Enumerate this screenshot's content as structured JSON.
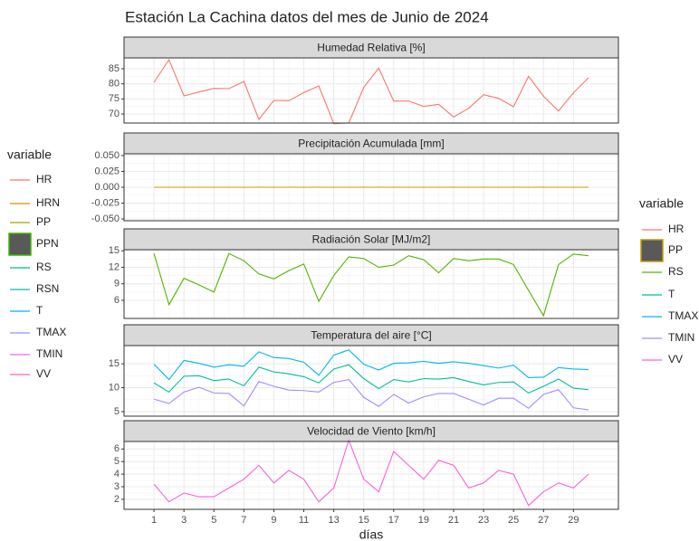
{
  "title": "Estación La Cachina datos del mes de Junio de 2024",
  "legends": [
    {
      "title": "variable",
      "entries": [
        {
          "name": "HR",
          "color": "#F8766D",
          "key": "line"
        },
        {
          "name": "HRN",
          "color": "#D89000",
          "key": "line"
        },
        {
          "name": "PP",
          "color": "#A3A500",
          "key": "line"
        },
        {
          "name": "PPN",
          "color": "#39B600",
          "key": "box"
        },
        {
          "name": "RS",
          "color": "#00BF7D",
          "key": "line"
        },
        {
          "name": "RSN",
          "color": "#00BFAD",
          "key": "line"
        },
        {
          "name": "T",
          "color": "#00B0F6",
          "key": "line"
        },
        {
          "name": "TMAX",
          "color": "#9590FF",
          "key": "line"
        },
        {
          "name": "TMIN",
          "color": "#E76BF3",
          "key": "line"
        },
        {
          "name": "VV",
          "color": "#FF62BC",
          "key": "line"
        }
      ]
    },
    {
      "title": "variable",
      "entries": [
        {
          "name": "HR",
          "color": "#F8766D",
          "key": "line"
        },
        {
          "name": "PP",
          "color": "#C49A00",
          "key": "box"
        },
        {
          "name": "RS",
          "color": "#53B400",
          "key": "line"
        },
        {
          "name": "T",
          "color": "#00C094",
          "key": "line"
        },
        {
          "name": "TMAX",
          "color": "#00B6EB",
          "key": "line"
        },
        {
          "name": "TMIN",
          "color": "#A58AFF",
          "key": "line"
        },
        {
          "name": "VV",
          "color": "#FB61D7",
          "key": "line"
        }
      ]
    }
  ],
  "chart_data": [
    {
      "type": "line",
      "title": "Humedad Relativa [%]",
      "x": [
        1,
        2,
        3,
        4,
        5,
        6,
        7,
        8,
        9,
        10,
        11,
        12,
        13,
        14,
        15,
        16,
        17,
        18,
        19,
        20,
        21,
        22,
        23,
        24,
        25,
        26,
        27,
        28,
        29,
        30
      ],
      "xlim": [
        -1,
        32
      ],
      "xticks": [
        1,
        3,
        5,
        7,
        9,
        11,
        13,
        15,
        17,
        19,
        21,
        23,
        25,
        27,
        29
      ],
      "ylim": [
        67,
        88.6
      ],
      "yticks": [
        70,
        75,
        80,
        85
      ],
      "grid": true,
      "series": [
        {
          "name": "HR",
          "color": "#F8766D",
          "values": [
            80.5,
            88,
            76,
            77.3,
            78.5,
            78.4,
            80.8,
            68.2,
            74.5,
            74.4,
            77.1,
            79.3,
            66.8,
            67,
            78.8,
            85.2,
            74.3,
            74.3,
            72.5,
            73.2,
            69,
            71.9,
            76.4,
            75.2,
            72.4,
            82.5,
            75.9,
            71,
            77,
            82
          ]
        }
      ]
    },
    {
      "type": "line",
      "title": "Precipitación Acumulada [mm]",
      "x": [
        1,
        2,
        3,
        4,
        5,
        6,
        7,
        8,
        9,
        10,
        11,
        12,
        13,
        14,
        15,
        16,
        17,
        18,
        19,
        20,
        21,
        22,
        23,
        24,
        25,
        26,
        27,
        28,
        29,
        30
      ],
      "xlim": [
        -1,
        32
      ],
      "xticks": [
        1,
        3,
        5,
        7,
        9,
        11,
        13,
        15,
        17,
        19,
        21,
        23,
        25,
        27,
        29
      ],
      "ylim": [
        -0.0528,
        0.0528
      ],
      "yticks": [
        {
          "value": -0.05,
          "label": "-0.050"
        },
        {
          "value": -0.025,
          "label": "-0.025"
        },
        {
          "value": 0,
          "label": "0.000"
        },
        {
          "value": 0.025,
          "label": "0.025"
        },
        {
          "value": 0.05,
          "label": "0.050"
        }
      ],
      "grid": true,
      "series": [
        {
          "name": "PP",
          "color": "#C49A00",
          "values": [
            0,
            0,
            0,
            0,
            0,
            0,
            0,
            0,
            0,
            0,
            0,
            0,
            0,
            0,
            0,
            0,
            0,
            0,
            0,
            0,
            0,
            0,
            0,
            0,
            0,
            0,
            0,
            0,
            0,
            0
          ]
        }
      ]
    },
    {
      "type": "line",
      "title": "Radiación Solar [MJ/m2]",
      "x": [
        1,
        2,
        3,
        4,
        5,
        6,
        7,
        8,
        9,
        10,
        11,
        12,
        13,
        14,
        15,
        16,
        17,
        18,
        19,
        20,
        21,
        22,
        23,
        24,
        25,
        26,
        27,
        28,
        29,
        30
      ],
      "xlim": [
        -1,
        32
      ],
      "xticks": [
        1,
        3,
        5,
        7,
        9,
        11,
        13,
        15,
        17,
        19,
        21,
        23,
        25,
        27,
        29
      ],
      "ylim": [
        2.7,
        15.2
      ],
      "yticks": [
        6,
        9,
        12,
        15
      ],
      "grid": true,
      "series": [
        {
          "name": "RS",
          "color": "#53B400",
          "values": [
            14.5,
            5.2,
            10,
            8.8,
            7.5,
            14.5,
            13.2,
            10.8,
            9.9,
            11.4,
            12.6,
            5.8,
            10.5,
            13.9,
            13.6,
            12,
            12.4,
            14.1,
            13.4,
            11,
            13.6,
            13.2,
            13.5,
            13.5,
            12.5,
            7.8,
            3.2,
            12.5,
            14.4,
            14.1
          ]
        }
      ]
    },
    {
      "type": "line",
      "title": "Temperatura del aire [°C]",
      "x": [
        1,
        2,
        3,
        4,
        5,
        6,
        7,
        8,
        9,
        10,
        11,
        12,
        13,
        14,
        15,
        16,
        17,
        18,
        19,
        20,
        21,
        22,
        23,
        24,
        25,
        26,
        27,
        28,
        29,
        30
      ],
      "xlim": [
        -1,
        32
      ],
      "xticks": [
        1,
        3,
        5,
        7,
        9,
        11,
        13,
        15,
        17,
        19,
        21,
        23,
        25,
        27,
        29
      ],
      "ylim": [
        4.06,
        18.8
      ],
      "yticks": [
        5,
        10,
        15
      ],
      "grid": true,
      "series": [
        {
          "name": "T",
          "color": "#00C094",
          "values": [
            11,
            9.1,
            12.4,
            12.5,
            11.5,
            11.8,
            10.4,
            14.3,
            13.3,
            12.9,
            12.3,
            11,
            13.9,
            14.8,
            11.9,
            9.8,
            11.7,
            11.2,
            11.9,
            11.8,
            12.1,
            11.3,
            10.6,
            11.1,
            11.2,
            8.9,
            10.3,
            11.8,
            9.9,
            9.6
          ]
        },
        {
          "name": "TMAX",
          "color": "#00B6EB",
          "values": [
            14.9,
            11.7,
            15.7,
            15.1,
            14.3,
            14.8,
            14.5,
            17.5,
            16.3,
            16.1,
            15.3,
            12.6,
            16.8,
            17.9,
            14.9,
            13.7,
            15.1,
            15.2,
            15.5,
            15.1,
            15.4,
            15.1,
            14.6,
            14.1,
            14.7,
            12.1,
            12.2,
            14.2,
            13.9,
            13.8
          ]
        },
        {
          "name": "TMIN",
          "color": "#A58AFF",
          "values": [
            7.6,
            6.7,
            9.1,
            10.1,
            8.9,
            8.8,
            6.2,
            11.3,
            10.3,
            9.5,
            9.4,
            9.1,
            11.1,
            11.7,
            8,
            6.1,
            8.6,
            6.8,
            8.1,
            8.8,
            8.8,
            7.6,
            6.4,
            7.8,
            7.8,
            5.7,
            8.6,
            9.6,
            5.8,
            5.4
          ]
        }
      ]
    },
    {
      "type": "line",
      "title": "Velocidad de Viento [km/h]",
      "x": [
        1,
        2,
        3,
        4,
        5,
        6,
        7,
        8,
        9,
        10,
        11,
        12,
        13,
        14,
        15,
        16,
        17,
        18,
        19,
        20,
        21,
        22,
        23,
        24,
        25,
        26,
        27,
        28,
        29,
        30
      ],
      "xlim": [
        -1,
        32
      ],
      "xticks": [
        1,
        3,
        5,
        7,
        9,
        11,
        13,
        15,
        17,
        19,
        21,
        23,
        25,
        27,
        29
      ],
      "x_label": "días",
      "ylim": [
        1.2,
        6.6
      ],
      "yticks": [
        2,
        3,
        4,
        5,
        6
      ],
      "grid": true,
      "series": [
        {
          "name": "VV",
          "color": "#FB61D7",
          "values": [
            3.2,
            1.8,
            2.5,
            2.2,
            2.2,
            2.9,
            3.6,
            4.7,
            3.3,
            4.3,
            3.6,
            1.8,
            2.9,
            6.7,
            3.6,
            2.6,
            5.8,
            4.7,
            3.6,
            5.1,
            4.7,
            2.9,
            3.3,
            4.3,
            4,
            1.5,
            2.6,
            3.3,
            2.9,
            4
          ]
        }
      ]
    }
  ]
}
